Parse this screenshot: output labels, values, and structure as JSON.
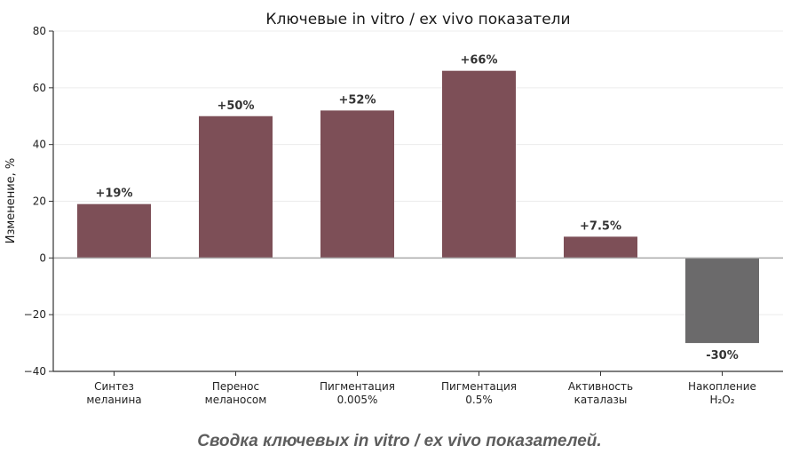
{
  "chart_data": {
    "type": "bar",
    "title": "Ключевые in vitro / ex vivo показатели",
    "ylabel": "Изменение, %",
    "xlabel": "",
    "categories": [
      [
        "Синтез",
        "меланина"
      ],
      [
        "Перенос",
        "меланосом"
      ],
      [
        "Пигментация",
        "0.005%"
      ],
      [
        "Пигментация",
        "0.5%"
      ],
      [
        "Активность",
        "каталазы"
      ],
      [
        "Накопление",
        "H₂O₂"
      ]
    ],
    "values": [
      19,
      50,
      52,
      66,
      7.5,
      -30
    ],
    "data_labels": [
      "+19%",
      "+50%",
      "+52%",
      "+66%",
      "+7.5%",
      "-30%"
    ],
    "bar_colors": [
      "#7d4f57",
      "#7d4f57",
      "#7d4f57",
      "#7d4f57",
      "#7d4f57",
      "#6b6a6b"
    ],
    "ylim": [
      -40,
      80
    ],
    "yticks": [
      -40,
      -20,
      0,
      20,
      40,
      60,
      80
    ],
    "ytick_labels": [
      "−40",
      "−20",
      "0",
      "20",
      "40",
      "60",
      "80"
    ],
    "grid": true,
    "zero_line": true
  },
  "caption": "Сводка ключевых in vitro / ex vivo показателей."
}
